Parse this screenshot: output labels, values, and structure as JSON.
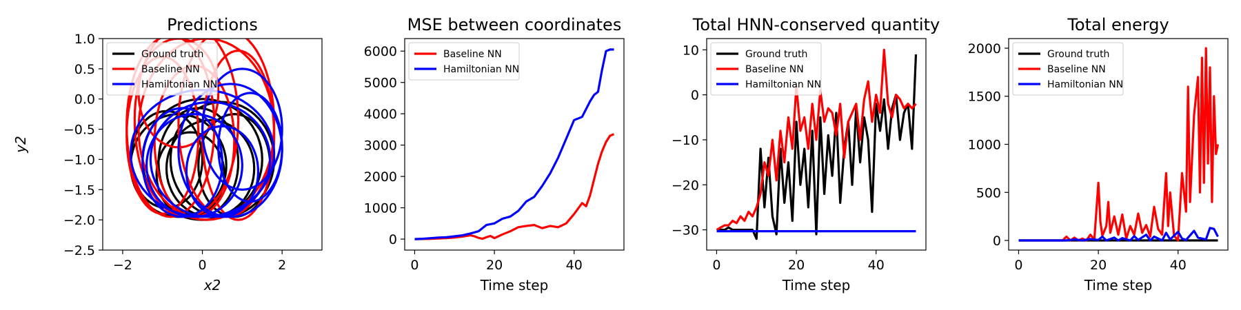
{
  "chart_data": [
    {
      "type": "line",
      "title": "Predictions",
      "xlabel": "x2",
      "ylabel": "y2",
      "xlim": [
        -2.5,
        3
      ],
      "ylim": [
        -2.5,
        1.0
      ],
      "xticks": [
        -2,
        0,
        2
      ],
      "xtick_labels": [
        "−2",
        "0",
        "2"
      ],
      "yticks": [
        1.0,
        0.5,
        0.0,
        -0.5,
        -1.0,
        -1.5,
        -2.0,
        -2.5
      ],
      "ytick_labels": [
        "1.0",
        "0.5",
        "0.0",
        "−0.5",
        "−1.0",
        "−1.5",
        "−2.0",
        "−2.5"
      ],
      "legend_position": "upper-left",
      "series": [
        {
          "name": "Ground truth",
          "color": "#000000",
          "loops": [
            {
              "cx": -0.1,
              "cy": -1.05,
              "rx": 1.0,
              "ry": 0.9
            },
            {
              "cx": -0.6,
              "cy": -1.1,
              "rx": 1.2,
              "ry": 0.85
            },
            {
              "cx": 0.5,
              "cy": -1.0,
              "rx": 1.3,
              "ry": 0.95
            },
            {
              "cx": -0.3,
              "cy": -1.25,
              "rx": 0.85,
              "ry": 0.7
            },
            {
              "cx": 0.2,
              "cy": -1.15,
              "rx": 1.1,
              "ry": 0.8
            },
            {
              "cx": -0.9,
              "cy": -1.0,
              "rx": 0.9,
              "ry": 0.8
            },
            {
              "cx": 0.8,
              "cy": -1.1,
              "rx": 0.9,
              "ry": 0.85
            },
            {
              "cx": 0.0,
              "cy": -1.0,
              "rx": 1.5,
              "ry": 1.0
            }
          ]
        },
        {
          "name": "Baseline NN",
          "color": "#ff0000",
          "loops": [
            {
              "cx": -0.8,
              "cy": -0.45,
              "rx": 1.1,
              "ry": 1.5
            },
            {
              "cx": -0.4,
              "cy": -0.35,
              "rx": 1.3,
              "ry": 1.6
            },
            {
              "cx": 0.6,
              "cy": -0.4,
              "rx": 1.2,
              "ry": 1.55
            },
            {
              "cx": -1.0,
              "cy": -0.6,
              "rx": 0.9,
              "ry": 1.3
            },
            {
              "cx": 0.1,
              "cy": -0.5,
              "rx": 1.7,
              "ry": 1.5
            },
            {
              "cx": -0.2,
              "cy": -0.7,
              "rx": 1.0,
              "ry": 1.25
            },
            {
              "cx": 0.9,
              "cy": -0.6,
              "rx": 0.9,
              "ry": 1.4
            },
            {
              "cx": -0.6,
              "cy": 0.1,
              "rx": 1.0,
              "ry": 0.9
            }
          ]
        },
        {
          "name": "Hamiltonian NN",
          "color": "#0000ff",
          "loops": [
            {
              "cx": 0.7,
              "cy": -0.85,
              "rx": 1.3,
              "ry": 1.1
            },
            {
              "cx": 1.0,
              "cy": -0.5,
              "rx": 1.0,
              "ry": 1.0
            },
            {
              "cx": 0.2,
              "cy": -1.0,
              "rx": 1.5,
              "ry": 0.95
            },
            {
              "cx": -0.2,
              "cy": -1.1,
              "rx": 1.2,
              "ry": 0.85
            },
            {
              "cx": 0.5,
              "cy": -1.2,
              "rx": 0.9,
              "ry": 0.75
            },
            {
              "cx": 1.2,
              "cy": -0.8,
              "rx": 0.8,
              "ry": 0.9
            },
            {
              "cx": -0.5,
              "cy": -1.05,
              "rx": 1.0,
              "ry": 0.9
            },
            {
              "cx": 0.0,
              "cy": -0.9,
              "rx": 1.8,
              "ry": 1.05
            }
          ]
        }
      ]
    },
    {
      "type": "line",
      "title": "MSE between coordinates",
      "xlabel": "Time step",
      "ylabel": "",
      "xlim": [
        -2.5,
        52.5
      ],
      "ylim": [
        -350,
        6400
      ],
      "xticks": [
        0,
        20,
        40
      ],
      "xtick_labels": [
        "0",
        "20",
        "40"
      ],
      "yticks": [
        0,
        1000,
        2000,
        3000,
        4000,
        5000,
        6000
      ],
      "ytick_labels": [
        "0",
        "1000",
        "2000",
        "3000",
        "4000",
        "5000",
        "6000"
      ],
      "legend_position": "upper-left",
      "series": [
        {
          "name": "Baseline NN",
          "color": "#ff0000",
          "x": [
            0,
            2,
            4,
            6,
            8,
            10,
            12,
            14,
            15,
            16,
            17,
            18,
            19,
            20,
            22,
            24,
            26,
            28,
            30,
            32,
            34,
            36,
            38,
            40,
            42,
            43,
            44,
            45,
            46,
            47,
            48,
            49,
            50
          ],
          "y": [
            0,
            5,
            10,
            20,
            30,
            50,
            80,
            120,
            90,
            40,
            10,
            60,
            100,
            30,
            150,
            250,
            380,
            420,
            450,
            350,
            420,
            380,
            500,
            800,
            1150,
            1050,
            1400,
            1900,
            2400,
            2800,
            3100,
            3300,
            3350
          ]
        },
        {
          "name": "Hamiltonian NN",
          "color": "#0000ff",
          "x": [
            0,
            2,
            4,
            6,
            8,
            10,
            12,
            14,
            16,
            18,
            20,
            22,
            24,
            26,
            28,
            30,
            32,
            34,
            36,
            38,
            40,
            42,
            44,
            45,
            46,
            47,
            48,
            49,
            50
          ],
          "y": [
            0,
            10,
            30,
            50,
            60,
            90,
            120,
            180,
            250,
            450,
            500,
            650,
            720,
            900,
            1200,
            1350,
            1700,
            2100,
            2600,
            3200,
            3800,
            3900,
            4400,
            4600,
            4700,
            5400,
            6000,
            6050,
            6050
          ]
        }
      ]
    },
    {
      "type": "line",
      "title": "Total HNN-conserved quantity",
      "xlabel": "Time step",
      "ylabel": "",
      "xlim": [
        -2.5,
        52.5
      ],
      "ylim": [
        -34.5,
        12.5
      ],
      "xticks": [
        0,
        20,
        40
      ],
      "xtick_labels": [
        "0",
        "20",
        "40"
      ],
      "yticks": [
        10,
        0,
        -10,
        -20,
        -30
      ],
      "ytick_labels": [
        "10",
        "0",
        "−10",
        "−20",
        "−30"
      ],
      "legend_position": "upper-left",
      "series": [
        {
          "name": "Ground truth",
          "color": "#000000",
          "x": [
            0,
            1,
            2,
            3,
            4,
            5,
            6,
            7,
            8,
            9,
            10,
            11,
            12,
            13,
            14,
            15,
            16,
            17,
            18,
            19,
            20,
            21,
            22,
            23,
            24,
            25,
            26,
            27,
            28,
            29,
            30,
            31,
            32,
            33,
            34,
            35,
            36,
            37,
            38,
            39,
            40,
            41,
            42,
            43,
            44,
            45,
            46,
            47,
            48,
            49,
            50
          ],
          "y": [
            -30,
            -30,
            -30,
            -29.5,
            -30,
            -30,
            -30,
            -30,
            -30,
            -30,
            -32,
            -12,
            -25,
            -14,
            -27,
            -31,
            -12,
            -24,
            -15,
            -28,
            -6,
            -20,
            -12,
            -25,
            -8,
            -31,
            -5,
            -22,
            -9,
            -18,
            -4,
            -24,
            -12,
            -6,
            -20,
            -3,
            -15,
            -5,
            -10,
            -26,
            -2,
            -8,
            -1,
            -12,
            -3,
            0,
            -10,
            -4,
            -2,
            -12,
            9
          ]
        },
        {
          "name": "Baseline NN",
          "color": "#ff0000",
          "x": [
            0,
            1,
            2,
            3,
            4,
            5,
            6,
            7,
            8,
            9,
            10,
            11,
            12,
            13,
            14,
            15,
            16,
            17,
            18,
            19,
            20,
            21,
            22,
            23,
            24,
            25,
            26,
            27,
            28,
            29,
            30,
            31,
            32,
            33,
            34,
            35,
            36,
            37,
            38,
            39,
            40,
            41,
            42,
            43,
            44,
            45,
            46,
            47,
            48,
            49,
            50
          ],
          "y": [
            -30,
            -29.5,
            -29,
            -29,
            -28,
            -28.5,
            -27,
            -28,
            -26,
            -27,
            -25,
            -22,
            -15,
            -18,
            -10,
            -19,
            -8,
            -15,
            -5,
            -12,
            2,
            -8,
            -5,
            -12,
            -2,
            -10,
            1,
            -6,
            -3,
            -4,
            -9,
            -2,
            -14,
            -6,
            -4,
            -2,
            -10,
            -1,
            3,
            -6,
            0,
            -4,
            10,
            -2,
            -5,
            0,
            -1,
            -3,
            -2,
            -3,
            -2
          ]
        },
        {
          "name": "Hamiltonian NN",
          "color": "#0000ff",
          "x": [
            0,
            50
          ],
          "y": [
            -30.3,
            -30.3
          ]
        }
      ]
    },
    {
      "type": "line",
      "title": "Total energy",
      "xlabel": "Time step",
      "ylabel": "",
      "xlim": [
        -2.5,
        52.5
      ],
      "ylim": [
        -100,
        2100
      ],
      "xticks": [
        0,
        20,
        40
      ],
      "xtick_labels": [
        "0",
        "20",
        "40"
      ],
      "yticks": [
        2000,
        1500,
        1000,
        500,
        0
      ],
      "ytick_labels": [
        "2000",
        "1500",
        "1000",
        "500",
        "0"
      ],
      "legend_position": "upper-left",
      "series": [
        {
          "name": "Ground truth",
          "color": "#000000",
          "x": [
            0,
            50
          ],
          "y": [
            0,
            0
          ]
        },
        {
          "name": "Baseline NN",
          "color": "#ff0000",
          "x": [
            0,
            11,
            12,
            13,
            14,
            15,
            16,
            17,
            18,
            19,
            20,
            20.5,
            21,
            22,
            22.5,
            23,
            24,
            25,
            26,
            27,
            28,
            29,
            30,
            31,
            32,
            33,
            34,
            35,
            36,
            37,
            37.5,
            38,
            39,
            40,
            41,
            42,
            42.5,
            43,
            44,
            45,
            45.5,
            46,
            46.5,
            47,
            47.5,
            48,
            48.5,
            49,
            49.5,
            50
          ],
          "y": [
            0,
            0,
            40,
            0,
            30,
            0,
            20,
            0,
            60,
            10,
            600,
            200,
            50,
            150,
            400,
            80,
            250,
            60,
            270,
            20,
            150,
            60,
            280,
            80,
            160,
            40,
            350,
            120,
            60,
            700,
            150,
            500,
            50,
            0,
            700,
            300,
            1600,
            400,
            1300,
            1700,
            500,
            1900,
            600,
            2000,
            800,
            1800,
            400,
            1500,
            900,
            1000
          ]
        },
        {
          "name": "Hamiltonian NN",
          "color": "#0000ff",
          "x": [
            0,
            12,
            14,
            16,
            18,
            20,
            21,
            22,
            24,
            25,
            26,
            28,
            29,
            30,
            32,
            33,
            34,
            36,
            37,
            38,
            40,
            41,
            42,
            44,
            45,
            46,
            47,
            48,
            49,
            50
          ],
          "y": [
            0,
            0,
            10,
            0,
            15,
            5,
            40,
            0,
            30,
            0,
            25,
            0,
            45,
            5,
            60,
            0,
            40,
            0,
            80,
            10,
            90,
            20,
            5,
            100,
            30,
            20,
            10,
            130,
            120,
            40
          ]
        }
      ]
    }
  ]
}
